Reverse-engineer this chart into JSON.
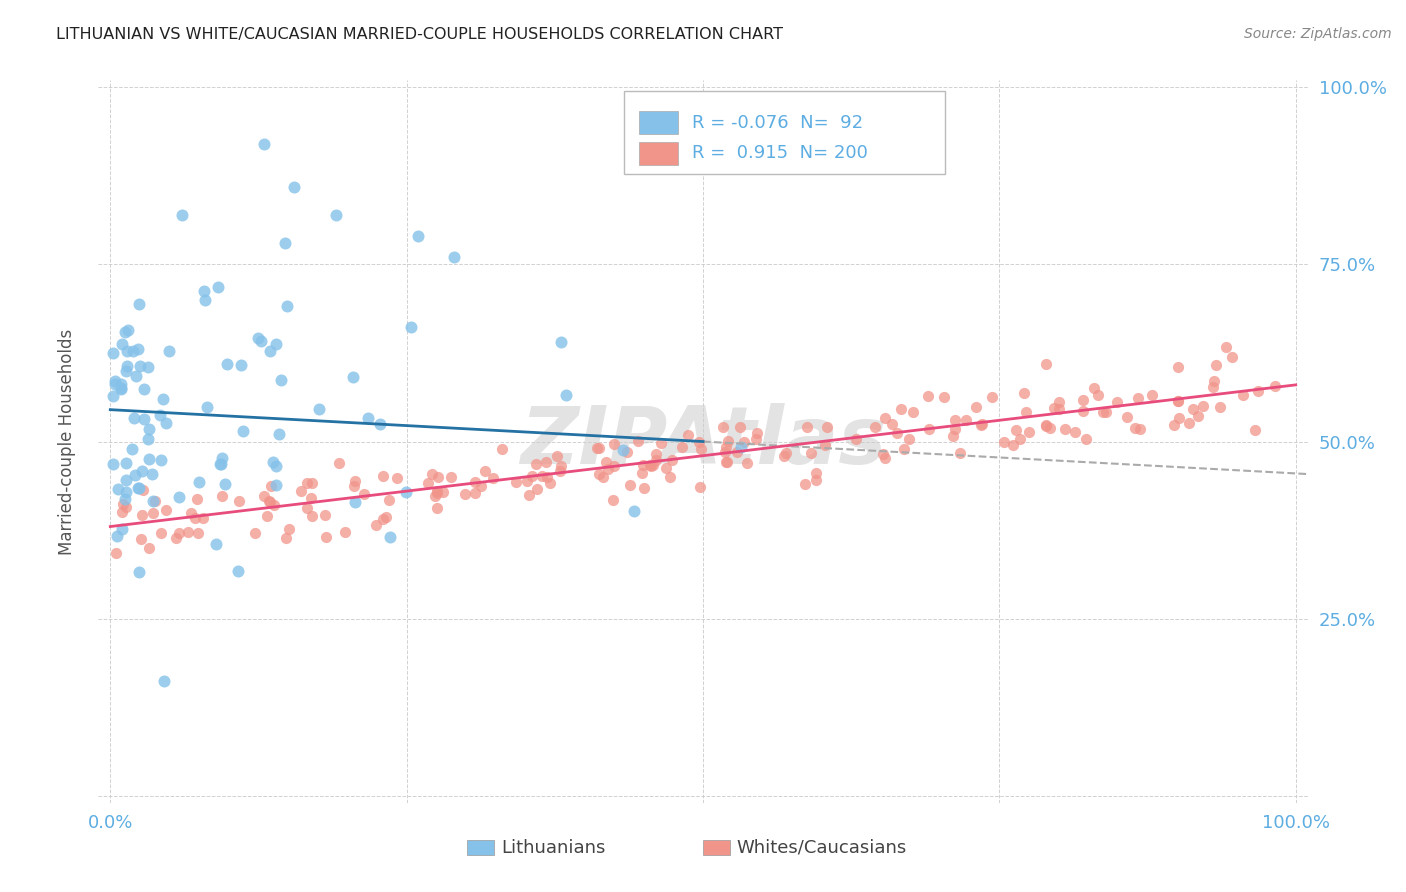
{
  "title": "LITHUANIAN VS WHITE/CAUCASIAN MARRIED-COUPLE HOUSEHOLDS CORRELATION CHART",
  "source": "Source: ZipAtlas.com",
  "ylabel": "Married-couple Households",
  "legend_labels": [
    "Lithuanians",
    "Whites/Caucasians"
  ],
  "watermark": "ZIPAtlas",
  "blue_color": "#85c1e9",
  "pink_color": "#f1948a",
  "blue_line_color": "#2471a3",
  "pink_line_color": "#e74c7c",
  "dashed_line_color": "#aaaaaa",
  "axis_label_color": "#5dade2",
  "title_color": "#222222",
  "R_blue": -0.076,
  "N_blue": 92,
  "R_pink": 0.915,
  "N_pink": 200,
  "blue_intercept": 0.545,
  "blue_slope": -0.09,
  "pink_intercept": 0.38,
  "pink_slope": 0.2
}
